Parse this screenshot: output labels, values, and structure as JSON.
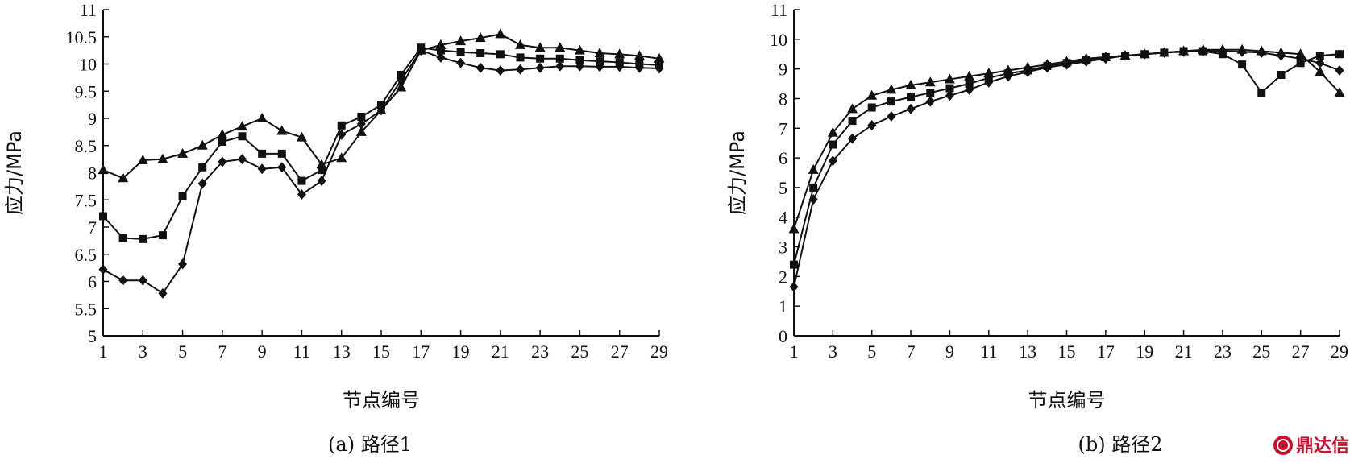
{
  "chart_data": [
    {
      "type": "line",
      "caption": "(a) 路径1",
      "xlabel": "节点编号",
      "ylabel": "应力/MPa",
      "ylim": [
        5,
        11
      ],
      "xlim": [
        1,
        29
      ],
      "xticks": [
        "1",
        "3",
        "5",
        "7",
        "9",
        "11",
        "13",
        "15",
        "17",
        "19",
        "21",
        "23",
        "25",
        "27",
        "29"
      ],
      "yticks": [
        "5",
        "5.5",
        "6",
        "6.5",
        "7",
        "7.5",
        "8",
        "8.5",
        "9",
        "9.5",
        "10",
        "10.5",
        "11"
      ],
      "x": [
        1,
        2,
        3,
        4,
        5,
        6,
        7,
        8,
        9,
        10,
        11,
        12,
        13,
        14,
        15,
        16,
        17,
        18,
        19,
        20,
        21,
        22,
        23,
        24,
        25,
        26,
        27,
        28,
        29
      ],
      "series": [
        {
          "marker": "diamond",
          "values": [
            6.22,
            6.02,
            6.02,
            5.78,
            6.32,
            7.8,
            8.2,
            8.25,
            8.07,
            8.1,
            7.6,
            7.85,
            8.7,
            8.9,
            9.15,
            9.7,
            10.25,
            10.12,
            10.02,
            9.93,
            9.88,
            9.9,
            9.93,
            9.96,
            9.96,
            9.95,
            9.95,
            9.93,
            9.92
          ]
        },
        {
          "marker": "square",
          "values": [
            7.2,
            6.8,
            6.78,
            6.85,
            7.57,
            8.1,
            8.57,
            8.67,
            8.35,
            8.35,
            7.85,
            8.05,
            8.87,
            9.03,
            9.25,
            9.8,
            10.3,
            10.25,
            10.22,
            10.2,
            10.18,
            10.12,
            10.1,
            10.1,
            10.07,
            10.05,
            10.03,
            10.0,
            9.98
          ]
        },
        {
          "marker": "triangle",
          "values": [
            8.05,
            7.9,
            8.23,
            8.25,
            8.35,
            8.5,
            8.7,
            8.85,
            9.0,
            8.77,
            8.65,
            8.15,
            8.27,
            8.75,
            9.15,
            9.57,
            10.25,
            10.35,
            10.42,
            10.48,
            10.55,
            10.35,
            10.3,
            10.3,
            10.25,
            10.2,
            10.18,
            10.15,
            10.1
          ]
        }
      ]
    },
    {
      "type": "line",
      "caption": "(b) 路径2",
      "xlabel": "节点编号",
      "ylabel": "应力/MPa",
      "ylim": [
        0,
        11
      ],
      "xlim": [
        1,
        29
      ],
      "xticks": [
        "1",
        "3",
        "5",
        "7",
        "9",
        "11",
        "13",
        "15",
        "17",
        "19",
        "21",
        "23",
        "25",
        "27",
        "29"
      ],
      "yticks": [
        "0",
        "1",
        "2",
        "3",
        "4",
        "5",
        "6",
        "7",
        "8",
        "9",
        "10",
        "11"
      ],
      "x": [
        1,
        2,
        3,
        4,
        5,
        6,
        7,
        8,
        9,
        10,
        11,
        12,
        13,
        14,
        15,
        16,
        17,
        18,
        19,
        20,
        21,
        22,
        23,
        24,
        25,
        26,
        27,
        28,
        29
      ],
      "series": [
        {
          "marker": "diamond",
          "values": [
            1.65,
            4.6,
            5.9,
            6.65,
            7.1,
            7.4,
            7.65,
            7.9,
            8.1,
            8.3,
            8.55,
            8.75,
            8.9,
            9.05,
            9.15,
            9.25,
            9.35,
            9.45,
            9.5,
            9.55,
            9.58,
            9.6,
            9.6,
            9.58,
            9.55,
            9.45,
            9.35,
            9.2,
            8.95
          ]
        },
        {
          "marker": "square",
          "values": [
            2.4,
            5.0,
            6.45,
            7.25,
            7.7,
            7.9,
            8.05,
            8.2,
            8.35,
            8.5,
            8.7,
            8.85,
            8.95,
            9.1,
            9.2,
            9.3,
            9.4,
            9.45,
            9.5,
            9.55,
            9.6,
            9.6,
            9.5,
            9.15,
            8.2,
            8.8,
            9.2,
            9.45,
            9.5
          ]
        },
        {
          "marker": "triangle",
          "values": [
            3.6,
            5.6,
            6.85,
            7.65,
            8.1,
            8.3,
            8.45,
            8.55,
            8.65,
            8.75,
            8.85,
            8.95,
            9.05,
            9.15,
            9.25,
            9.35,
            9.4,
            9.45,
            9.5,
            9.55,
            9.6,
            9.65,
            9.65,
            9.65,
            9.6,
            9.55,
            9.5,
            8.9,
            8.2
          ]
        }
      ]
    }
  ],
  "watermark": {
    "text": "鼎达信",
    "color": "#c8102e"
  }
}
